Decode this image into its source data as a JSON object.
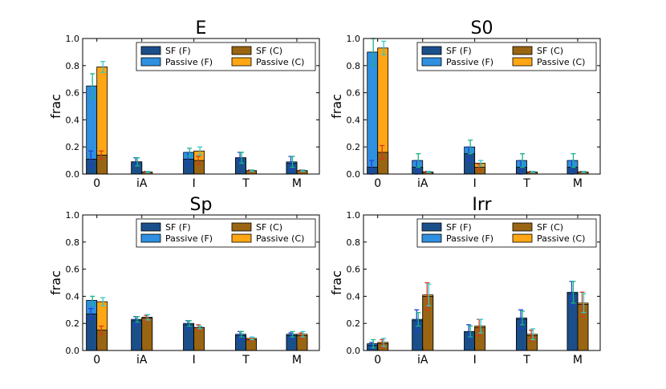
{
  "chart_data": [
    {
      "type": "bar",
      "title": "E",
      "ylabel": "frac",
      "ylim": [
        0,
        1.0
      ],
      "yticks": [
        "0.0",
        "0.2",
        "0.4",
        "0.6",
        "0.8",
        "1.0"
      ],
      "categories": [
        "0",
        "iA",
        "I",
        "T",
        "M"
      ],
      "legend_position": "top-right",
      "series": [
        {
          "name": "SF (F)",
          "values": [
            0.11,
            0.09,
            0.11,
            0.12,
            0.08
          ],
          "errors": [
            0.06,
            0.03,
            0.05,
            0.04,
            0.05
          ]
        },
        {
          "name": "Passive (F)",
          "values": [
            0.65,
            0.09,
            0.16,
            0.12,
            0.09
          ],
          "errors": [
            0.09,
            0.03,
            0.03,
            0.04,
            0.04
          ]
        },
        {
          "name": "SF (C)",
          "values": [
            0.14,
            0.015,
            0.1,
            0.025,
            0.025
          ],
          "errors": [
            0.03,
            0.005,
            0.03,
            0.005,
            0.005
          ]
        },
        {
          "name": "Passive (C)",
          "values": [
            0.79,
            0.015,
            0.17,
            0.025,
            0.025
          ],
          "errors": [
            0.04,
            0.005,
            0.03,
            0.005,
            0.005
          ]
        }
      ]
    },
    {
      "type": "bar",
      "title": "S0",
      "ylabel": "frac",
      "ylim": [
        0,
        1.0
      ],
      "yticks": [
        "0.0",
        "0.2",
        "0.4",
        "0.6",
        "0.8",
        "1.0"
      ],
      "categories": [
        "0",
        "iA",
        "I",
        "T",
        "M"
      ],
      "legend_position": "top-right",
      "series": [
        {
          "name": "SF (F)",
          "values": [
            0.05,
            0.05,
            0.15,
            0.05,
            0.05
          ],
          "errors": [
            0.05,
            0.05,
            0.05,
            0.05,
            0.05
          ]
        },
        {
          "name": "Passive (F)",
          "values": [
            0.9,
            0.1,
            0.2,
            0.1,
            0.1
          ],
          "errors": [
            0.1,
            0.05,
            0.05,
            0.05,
            0.05
          ]
        },
        {
          "name": "SF (C)",
          "values": [
            0.16,
            0.015,
            0.05,
            0.015,
            0.015
          ],
          "errors": [
            0.05,
            0.005,
            0.02,
            0.005,
            0.005
          ]
        },
        {
          "name": "Passive (C)",
          "values": [
            0.93,
            0.015,
            0.08,
            0.015,
            0.015
          ],
          "errors": [
            0.05,
            0.005,
            0.02,
            0.005,
            0.005
          ]
        }
      ]
    },
    {
      "type": "bar",
      "title": "Sp",
      "ylabel": "frac",
      "ylim": [
        0,
        1.0
      ],
      "yticks": [
        "0.0",
        "0.2",
        "0.4",
        "0.6",
        "0.8",
        "1.0"
      ],
      "categories": [
        "0",
        "iA",
        "I",
        "T",
        "M"
      ],
      "legend_position": "top-right",
      "series": [
        {
          "name": "SF (F)",
          "values": [
            0.27,
            0.22,
            0.19,
            0.11,
            0.11
          ],
          "errors": [
            0.04,
            0.03,
            0.03,
            0.03,
            0.02
          ]
        },
        {
          "name": "Passive (F)",
          "values": [
            0.37,
            0.23,
            0.2,
            0.12,
            0.12
          ],
          "errors": [
            0.03,
            0.02,
            0.02,
            0.02,
            0.02
          ]
        },
        {
          "name": "SF (C)",
          "values": [
            0.15,
            0.24,
            0.17,
            0.08,
            0.11
          ],
          "errors": [
            0.03,
            0.02,
            0.02,
            0.01,
            0.02
          ]
        },
        {
          "name": "Passive (C)",
          "values": [
            0.36,
            0.245,
            0.17,
            0.09,
            0.12
          ],
          "errors": [
            0.03,
            0.02,
            0.01,
            0.01,
            0.02
          ]
        }
      ]
    },
    {
      "type": "bar",
      "title": "Irr",
      "ylabel": "frac",
      "ylim": [
        0,
        1.0
      ],
      "yticks": [
        "0.0",
        "0.2",
        "0.4",
        "0.6",
        "0.8",
        "1.0"
      ],
      "categories": [
        "0",
        "iA",
        "I",
        "T",
        "M"
      ],
      "legend_position": "top-right",
      "series": [
        {
          "name": "SF (F)",
          "values": [
            0.04,
            0.22,
            0.14,
            0.23,
            0.42
          ],
          "errors": [
            0.02,
            0.08,
            0.05,
            0.07,
            0.09
          ]
        },
        {
          "name": "Passive (F)",
          "values": [
            0.05,
            0.23,
            0.14,
            0.24,
            0.43
          ],
          "errors": [
            0.03,
            0.05,
            0.04,
            0.05,
            0.08
          ]
        },
        {
          "name": "SF (C)",
          "values": [
            0.05,
            0.4,
            0.17,
            0.11,
            0.34
          ],
          "errors": [
            0.03,
            0.1,
            0.06,
            0.04,
            0.09
          ]
        },
        {
          "name": "Passive (C)",
          "values": [
            0.06,
            0.41,
            0.18,
            0.12,
            0.35
          ],
          "errors": [
            0.03,
            0.08,
            0.05,
            0.04,
            0.07
          ]
        }
      ]
    }
  ],
  "colors": {
    "sf_f": "#1a4f8a",
    "passive_f": "#2f8fe0",
    "sf_c": "#9a6512",
    "passive_c": "#ffa614",
    "err_sf_f": "#1f3fd6",
    "err_passive_f": "#17b585",
    "err_sf_c": "#d63a1c",
    "err_passive_c": "#35c8c8"
  }
}
